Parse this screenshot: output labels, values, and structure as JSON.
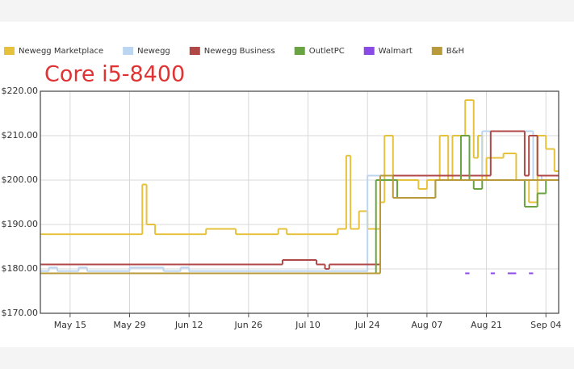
{
  "chart_data": {
    "type": "step-line",
    "title": "Core i5-8400",
    "xlim": [
      "May 8",
      "Sep 7"
    ],
    "xticks": [
      "May 15",
      "May 29",
      "Jun 12",
      "Jun 26",
      "Jul 10",
      "Jul 24",
      "Aug 07",
      "Aug 21",
      "Sep 04"
    ],
    "ylim": [
      170,
      220
    ],
    "yticks": [
      {
        "value": 170,
        "label": "$170.00"
      },
      {
        "value": 180,
        "label": "$180.00"
      },
      {
        "value": 190,
        "label": "$190.00"
      },
      {
        "value": 200,
        "label": "$200.00"
      },
      {
        "value": 210,
        "label": "$210.00"
      },
      {
        "value": 220,
        "label": "$220.00"
      }
    ],
    "grid": true,
    "legend": "top",
    "series": [
      {
        "name": "Newegg Marketplace",
        "color": "#e6c23c",
        "x": [
          "May 8",
          "Jun 1",
          "Jun 2",
          "Jun 4",
          "Jun 16",
          "Jun 23",
          "Jul 3",
          "Jul 5",
          "Jul 17",
          "Jul 19",
          "Jul 20",
          "Jul 22",
          "Jul 24",
          "Jul 27",
          "Jul 28",
          "Jul 30",
          "Aug 5",
          "Aug 7",
          "Aug 10",
          "Aug 12",
          "Aug 13",
          "Aug 16",
          "Aug 18",
          "Aug 19",
          "Aug 20",
          "Aug 21",
          "Aug 25",
          "Aug 28",
          "Aug 31",
          "Sep 2",
          "Sep 4",
          "Sep 6"
        ],
        "values": [
          187.8,
          199,
          190,
          187.8,
          189,
          187.8,
          189,
          187.8,
          189,
          205.5,
          189,
          193,
          189,
          195,
          210,
          200,
          198,
          200,
          210,
          200,
          210,
          218,
          205,
          210,
          200,
          205,
          206,
          200,
          195,
          210,
          207,
          202
        ]
      },
      {
        "name": "Newegg",
        "color": "#bcd6f2",
        "x": [
          "May 8",
          "May 10",
          "May 12",
          "May 17",
          "May 19",
          "May 29",
          "Jun 6",
          "Jun 10",
          "Jun 12",
          "Jul 24",
          "Aug 20",
          "Sep 1",
          "Sep 3"
        ],
        "values": [
          179.5,
          180.3,
          179.5,
          180.3,
          179.5,
          180.3,
          179.5,
          180.3,
          179.5,
          201,
          211,
          200,
          201
        ]
      },
      {
        "name": "Newegg Business",
        "color": "#b04848",
        "x": [
          "May 8",
          "Jul 4",
          "Jul 12",
          "Jul 14",
          "Jul 15",
          "Jul 27",
          "Aug 22",
          "Aug 30",
          "Aug 31",
          "Sep 2"
        ],
        "values": [
          181,
          182,
          181,
          180,
          181,
          201,
          211,
          201,
          210,
          201
        ]
      },
      {
        "name": "OutletPC",
        "color": "#6aa442",
        "x": [
          "May 8",
          "Jul 26",
          "Jul 31",
          "Aug 9",
          "Aug 15",
          "Aug 17",
          "Aug 18",
          "Aug 20",
          "Aug 30",
          "Sep 2",
          "Sep 4"
        ],
        "values": [
          179,
          200,
          196,
          200,
          210,
          200,
          198,
          200,
          194,
          197,
          200
        ]
      },
      {
        "name": "Walmart",
        "color": "#8a4ae6",
        "x": [
          "Aug 16",
          "Aug 17",
          "Aug 22",
          "Aug 23",
          "Aug 26",
          "Aug 28",
          "Aug 31",
          "Sep 1"
        ],
        "values": [
          179,
          null,
          179,
          null,
          179,
          null,
          179,
          null
        ]
      },
      {
        "name": "B&H",
        "color": "#b89a3a",
        "x": [
          "May 8",
          "Jul 27",
          "Jul 30",
          "Aug 9",
          "Sep 6"
        ],
        "values": [
          179,
          201,
          196,
          200,
          200
        ]
      }
    ]
  }
}
